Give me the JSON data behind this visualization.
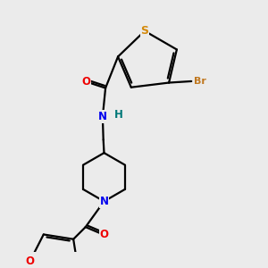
{
  "background_color": "#ebebeb",
  "atom_colors": {
    "S": "#d4890a",
    "Br": "#c07820",
    "N": "#0000ee",
    "O": "#ee0000",
    "H": "#007777",
    "C": "#000000"
  },
  "bond_color": "#000000",
  "bond_width": 1.6,
  "font_size": 8.5
}
